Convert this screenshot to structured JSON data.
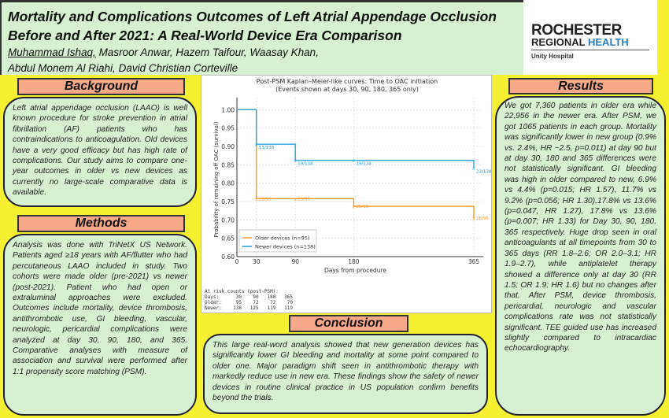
{
  "header": {
    "title": "Mortality and Complications Outcomes of Left Atrial Appendage Occlusion Before and After 2021: A Real-World Device Era Comparison",
    "authors_line1_presenter": "Muhammad Ishaq,",
    "authors_line1_rest": " Masroor Anwar, Hazem Taifour, Waasay Khan,",
    "authors_line2": "Abdul Monem Al Riahi, David Christian Corteville"
  },
  "logo": {
    "line1": "ROCHESTER",
    "line2a": "REGIONAL ",
    "line2b": "HEALTH",
    "line3": "Unity Hospital",
    "colors": {
      "dark": "#222222",
      "blue": "#2a7fc0"
    }
  },
  "background": {
    "heading": "Background",
    "text": "Left atrial appendage occlusion (LAAO) is well known procedure for stroke prevention in atrial fibrillation (AF) patients who has contraindications to anticoagulation. Old devices have a very good efficacy but has high rate of complications. Our study aims to compare one-year outcomes in older vs new devices as currently no large-scale comparative data is available."
  },
  "methods": {
    "heading": "Methods",
    "text": "Analysis was done with TriNetX US Network. Patients aged ≥18 years with AF/flutter who had percutaneous LAAO included in study. Two cohorts were made older (pre-2021) vs newer (post-2021). Patient who had open or extraluminal approaches were excluded. Outcomes include mortality, device thrombosis, antithrombotic use, GI bleeding, vascular, neurologic, pericardial complications were analyzed at day 30, 90, 180, and 365. Comparative analyses with measure of association and survival were performed after 1:1 propensity score matching (PSM)."
  },
  "conclusion": {
    "heading": "Conclusion",
    "text": "This large real-word analysis showed that new generation devices has significantly lower GI bleeding and mortality at some point compared to older one. Major paradigm shift seen in antithrombotic therapy with markedly reduce use in new era. These findings show the safety of newer devices in routine clinical practice in US population confirm benefits beyond the trials."
  },
  "results": {
    "heading": "Results",
    "text": "We got 7,360 patients in older era while 22,956 in the newer era. After PSM, we got 1065 patients in each group. Mortality was significantly lower in new group (0.9% vs. 2.4%, HR ~2.5, p=0.011) at day 90 but at day 30, 180 and 365 differences were not statistically significant. GI bleeding was high in older compared to new, 6.9% vs 4.4% (p=0.015; HR 1.57), 11.7% vs 9.2% (p=0.056; HR 1.30),17.8% vs 13.6% (p=0.047, HR 1.27), 17.8% vs 13.6% (p=0.007; HR 1.33) for Day 30, 90, 180, 365 respectively. Huge drop seen in oral anticoagulants at all timepoints from 30 to 365 days (RR 1.8–2.6; OR 2.0–3.1; HR 1.9–2.7), while antiplatelet therapy showed a difference only at day 30 (RR 1.5; OR 1.9; HR 1.6) but no changes after that. After PSM, device thrombosis, pericardial, neurologic and vascular complications rate was not statistically significant. TEE guided use has increased slightly compared to intracardiac echocardiography."
  },
  "chart_data": {
    "type": "line",
    "title": "Post-PSM Kaplan–Meier-like curves: Time to OAC initiation",
    "subtitle": "(Events shown at days 30, 90, 180, 365 only)",
    "xlabel": "Days from procedure",
    "ylabel": "Probability of remaining off OAC (survival)",
    "xlim": [
      0,
      365
    ],
    "ylim": [
      0.6,
      1.02
    ],
    "xticks": [
      0,
      30,
      90,
      180,
      365
    ],
    "yticks": [
      "0.60",
      "0.65",
      "0.70",
      "0.75",
      "0.80",
      "0.85",
      "0.90",
      "0.95",
      "1.00"
    ],
    "legend": "bottom-left",
    "grid": true,
    "series": [
      {
        "name": "Older devices (n=95)",
        "color": "#ff9a1f",
        "steps": [
          [
            0,
            1.0
          ],
          [
            30,
            0.758
          ],
          [
            90,
            0.758
          ],
          [
            180,
            0.737
          ],
          [
            365,
            0.705
          ]
        ],
        "labels": [
          "23/95",
          "23/95",
          "25/95",
          "28/95"
        ]
      },
      {
        "name": "Newer devices (n=138)",
        "color": "#2aa3e0",
        "steps": [
          [
            0,
            1.0
          ],
          [
            30,
            0.906
          ],
          [
            90,
            0.862
          ],
          [
            180,
            0.862
          ],
          [
            365,
            0.841
          ]
        ],
        "labels": [
          "13/138",
          "19/138",
          "19/138",
          "22/138"
        ]
      }
    ],
    "risk_table": "At risk counts (post-PSM):\nDays:      30    90   180   365\nOlder:     95    72    72    70\nNewer:    138   125   119   119"
  }
}
